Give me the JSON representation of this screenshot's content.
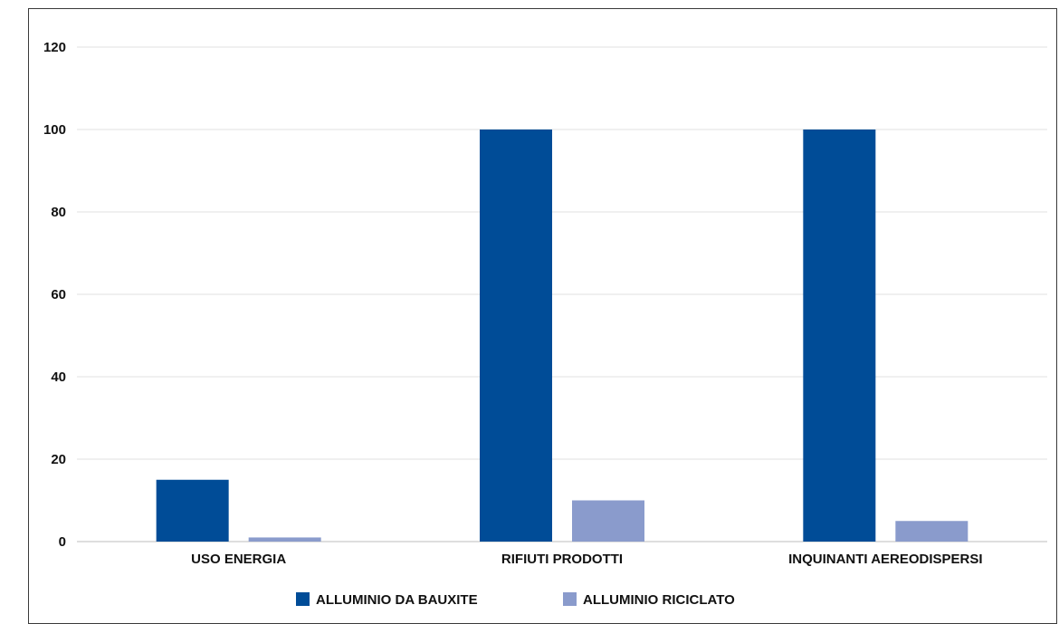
{
  "chart_data": {
    "type": "bar",
    "categories": [
      "USO ENERGIA",
      "RIFIUTI PRODOTTI",
      "INQUINANTI AEREODISPERSI"
    ],
    "series": [
      {
        "name": "ALLUMINIO DA BAUXITE",
        "values": [
          15,
          100,
          100
        ],
        "color": "#004c97"
      },
      {
        "name": "ALLUMINIO RICICLATO",
        "values": [
          1,
          10,
          5
        ],
        "color": "#8a9bcc"
      }
    ],
    "ylim": [
      0,
      120
    ],
    "yticks": [
      0,
      20,
      40,
      60,
      80,
      100,
      120
    ],
    "grid": true,
    "legend": "bottom",
    "title": "",
    "xlabel": "",
    "ylabel": ""
  }
}
